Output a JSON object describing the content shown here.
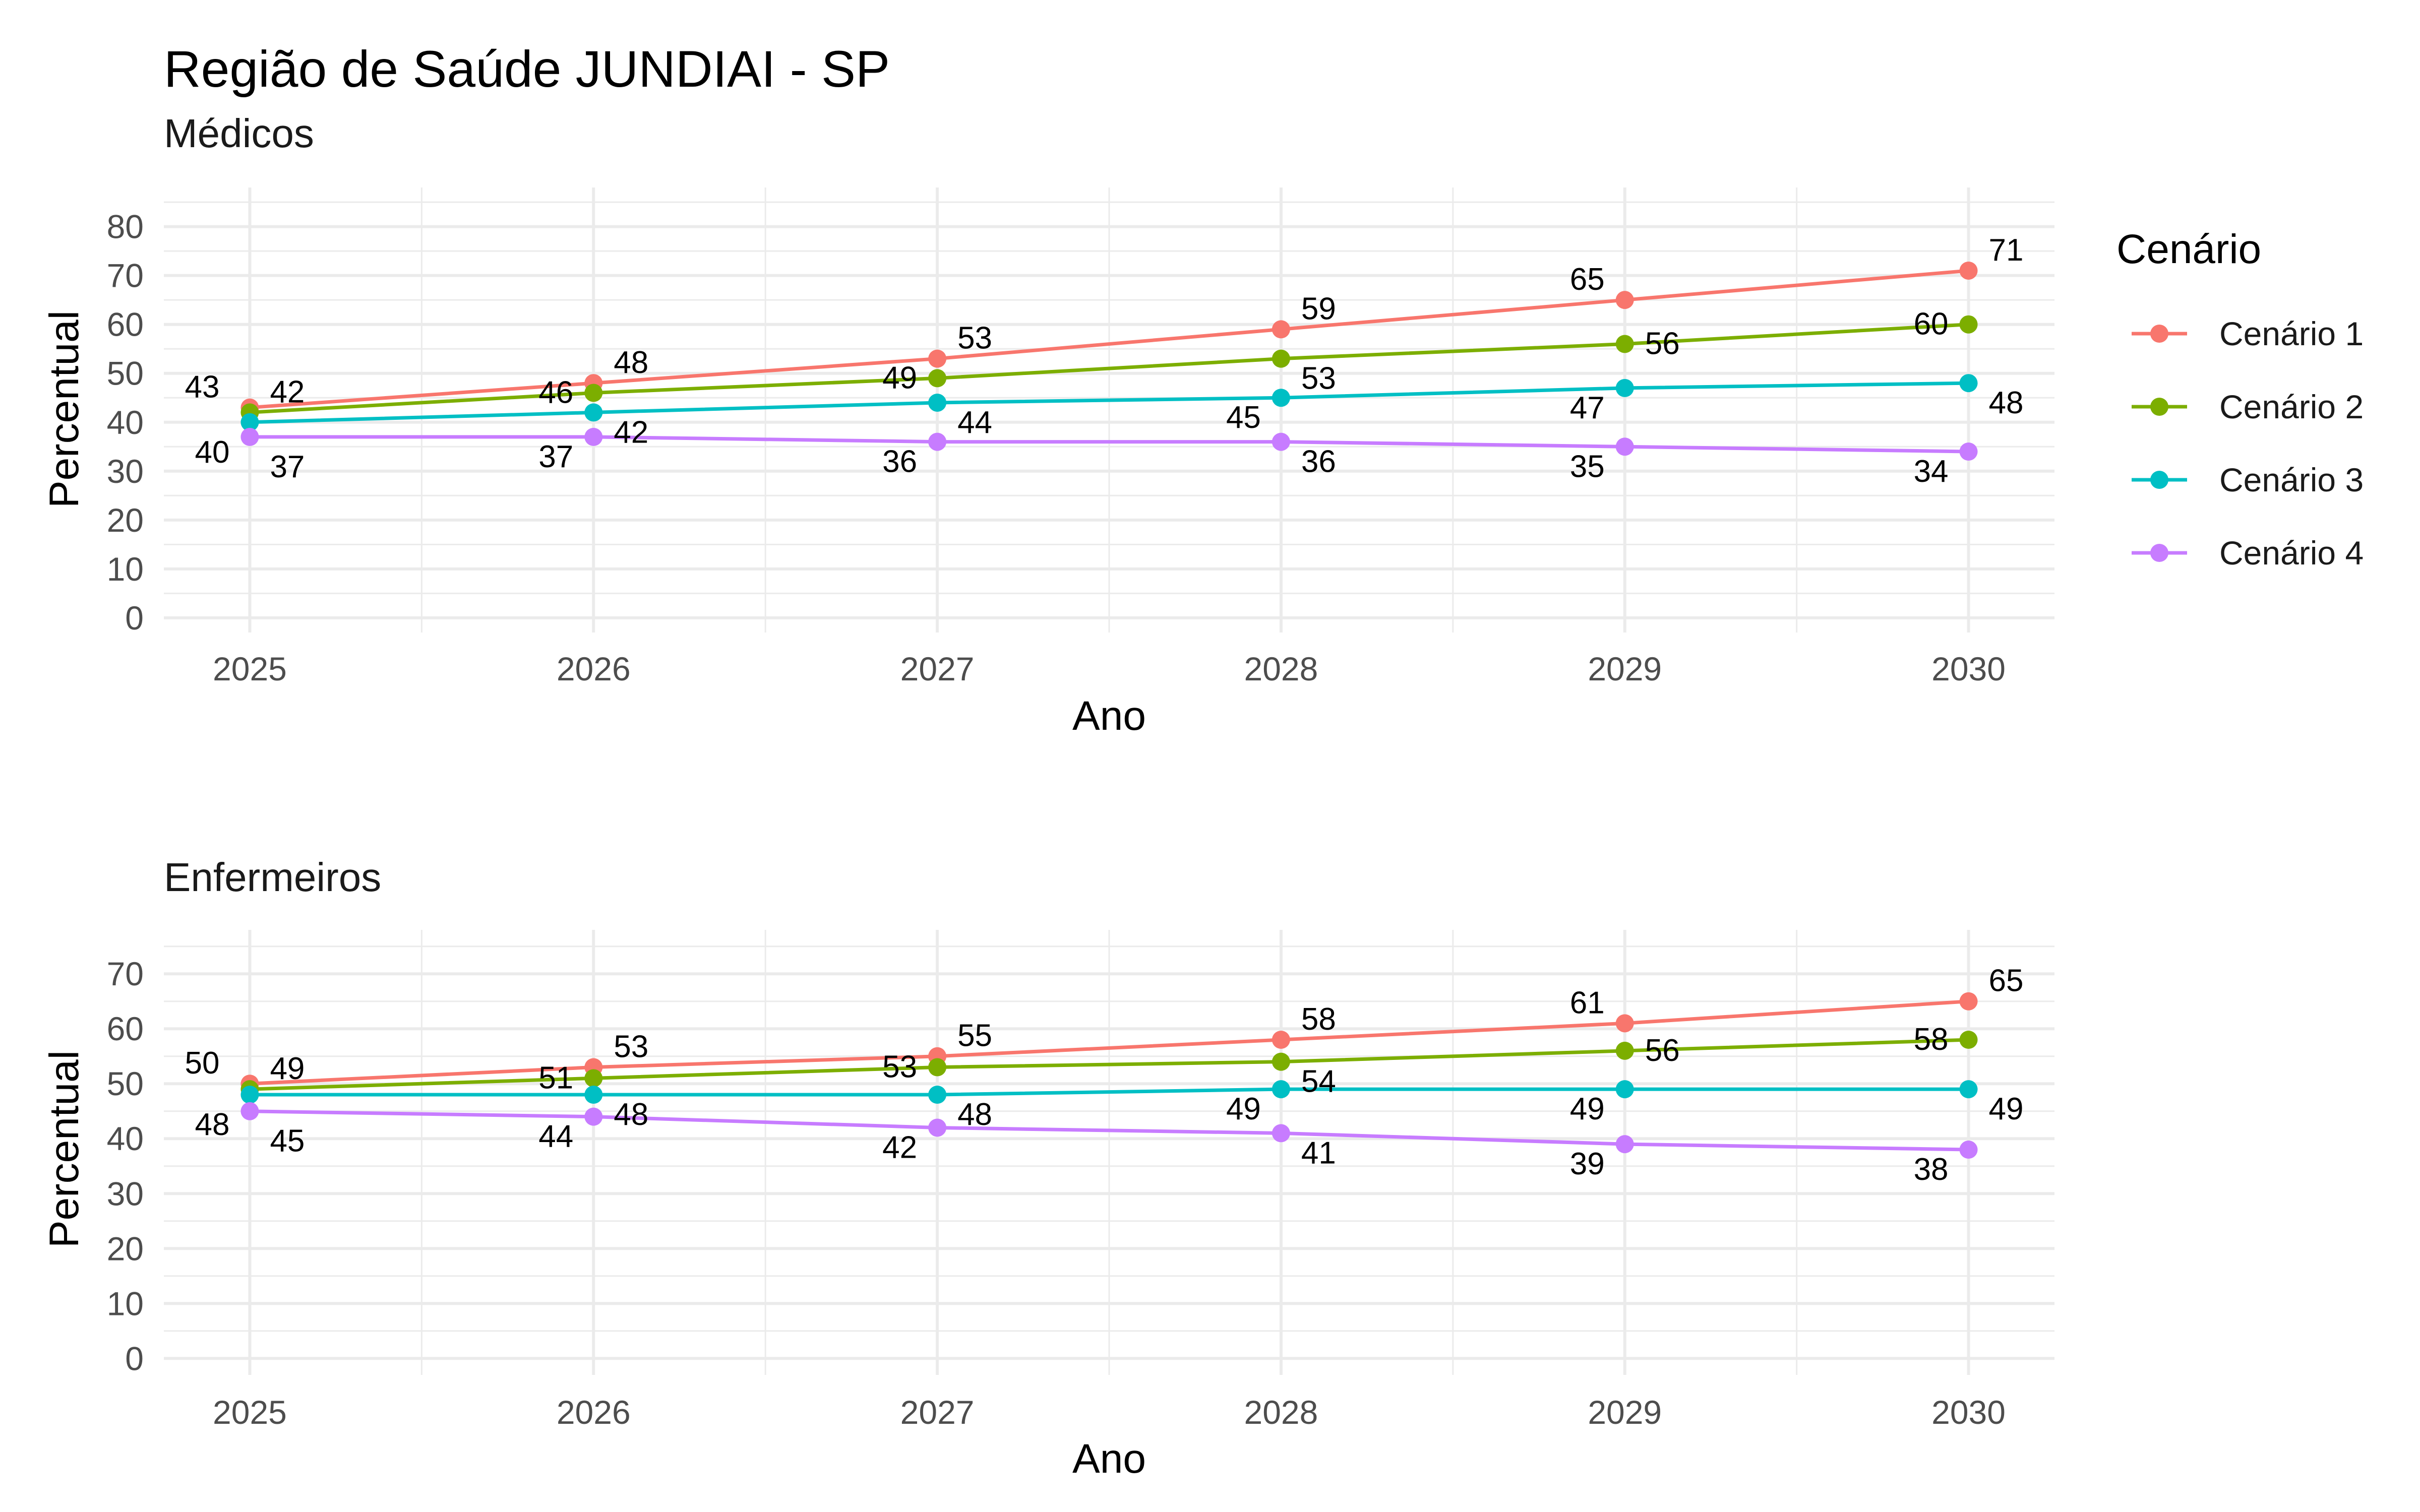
{
  "title": "Região de Saúde JUNDIAI - SP",
  "legend": {
    "title": "Cenário",
    "position": "right"
  },
  "colors": {
    "Cenário 1": "#F8766D",
    "Cenário 2": "#7CAE00",
    "Cenário 3": "#00BFC4",
    "Cenário 4": "#C77CFF"
  },
  "chart_data": [
    {
      "type": "line",
      "subtitle": "Médicos",
      "xlabel": "Ano",
      "ylabel": "Percentual",
      "x": [
        2025,
        2026,
        2027,
        2028,
        2029,
        2030
      ],
      "xlim": [
        2024.75,
        2030.25
      ],
      "ylim": [
        -3,
        88
      ],
      "yticks": [
        0,
        10,
        20,
        30,
        40,
        50,
        60,
        70,
        80
      ],
      "grid": true,
      "series": [
        {
          "name": "Cenário 1",
          "values": [
            43,
            48,
            53,
            59,
            65,
            71
          ]
        },
        {
          "name": "Cenário 2",
          "values": [
            42,
            46,
            49,
            53,
            56,
            60
          ]
        },
        {
          "name": "Cenário 3",
          "values": [
            40,
            42,
            44,
            45,
            47,
            48
          ]
        },
        {
          "name": "Cenário 4",
          "values": [
            37,
            37,
            36,
            36,
            35,
            34
          ]
        }
      ]
    },
    {
      "type": "line",
      "subtitle": "Enfermeiros",
      "xlabel": "Ano",
      "ylabel": "Percentual",
      "x": [
        2025,
        2026,
        2027,
        2028,
        2029,
        2030
      ],
      "xlim": [
        2024.75,
        2030.25
      ],
      "ylim": [
        -3,
        78
      ],
      "yticks": [
        0,
        10,
        20,
        30,
        40,
        50,
        60,
        70
      ],
      "grid": true,
      "series": [
        {
          "name": "Cenário 1",
          "values": [
            50,
            53,
            55,
            58,
            61,
            65
          ]
        },
        {
          "name": "Cenário 2",
          "values": [
            49,
            51,
            53,
            54,
            56,
            58
          ]
        },
        {
          "name": "Cenário 3",
          "values": [
            48,
            48,
            48,
            49,
            49,
            49
          ]
        },
        {
          "name": "Cenário 4",
          "values": [
            45,
            44,
            42,
            41,
            39,
            38
          ]
        }
      ]
    }
  ]
}
